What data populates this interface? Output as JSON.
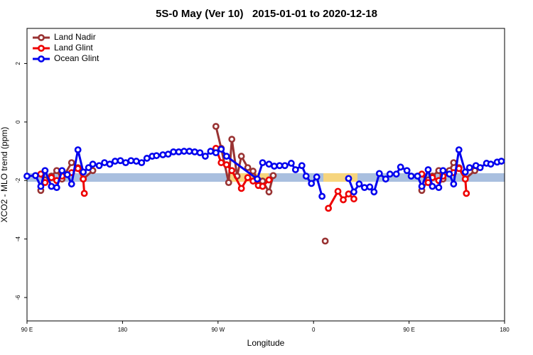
{
  "chart_data": {
    "type": "line",
    "title": "5S-0 May (Ver 10)   2015-01-01 to 2020-12-18",
    "x_label": "Longitude",
    "y_label": "XCO2 - MLO trend (ppm)",
    "xlim": [
      90,
      540
    ],
    "ylim": [
      -6.8,
      3.2
    ],
    "xticks": [
      {
        "value": 90,
        "label": "90 E"
      },
      180,
      {
        "value": 270,
        "label": "90 W"
      },
      {
        "value": 360,
        "label": "0"
      },
      {
        "value": 450,
        "label": "90 E"
      },
      {
        "value": 540,
        "label": "180"
      }
    ],
    "yticks": [
      2,
      0,
      -2,
      -4,
      -6
    ],
    "legend": "top-left",
    "series": [
      {
        "name": "Land Nadir",
        "color": "#993333",
        "x": [
          103,
          107,
          113,
          118,
          123,
          132,
          138,
          143,
          152,
          null,
          268,
          273,
          280,
          283,
          288,
          292,
          298,
          303,
          308,
          312,
          318,
          322,
          null,
          371,
          null,
          462,
          468,
          472,
          478,
          482,
          488,
          492,
          497,
          503,
          512
        ],
        "values": [
          -2.34,
          -1.98,
          -1.85,
          -1.66,
          -1.95,
          -1.39,
          -1.56,
          -1.95,
          -1.66,
          null,
          -0.15,
          -0.9,
          -2.07,
          -0.59,
          -1.85,
          -1.17,
          -1.56,
          -1.68,
          -2.0,
          -2.02,
          -2.39,
          -1.83,
          null,
          -4.07,
          null,
          -2.34,
          -1.98,
          -1.85,
          -1.66,
          -1.95,
          -1.66,
          -1.39,
          -1.56,
          -1.95,
          -1.66
        ]
      },
      {
        "name": "Land Glint",
        "color": "#ee0000",
        "x": [
          103,
          107,
          113,
          118,
          123,
          132,
          138,
          143,
          144,
          null,
          268,
          273,
          278,
          283,
          292,
          298,
          303,
          308,
          312,
          318,
          null,
          374,
          383,
          388,
          393,
          398,
          null,
          462,
          468,
          472,
          478,
          482,
          492,
          497,
          503,
          504
        ],
        "values": [
          -1.78,
          -2.07,
          -1.9,
          -2.0,
          -1.85,
          -1.73,
          -1.59,
          -1.95,
          -2.44,
          null,
          -0.9,
          -1.39,
          -1.46,
          -1.66,
          -2.27,
          -1.9,
          -2.02,
          -2.17,
          -2.2,
          -1.98,
          null,
          -2.95,
          -2.37,
          -2.66,
          -2.46,
          -2.63,
          null,
          -1.78,
          -2.07,
          -1.9,
          -2.0,
          -1.85,
          -1.73,
          -1.59,
          -1.95,
          -2.44
        ]
      },
      {
        "name": "Ocean Glint",
        "color": "#0000ee",
        "x": [
          90,
          98,
          103,
          107,
          113,
          118,
          123,
          128,
          132,
          138,
          143,
          148,
          152,
          158,
          163,
          168,
          173,
          178,
          183,
          188,
          193,
          198,
          203,
          208,
          212,
          218,
          223,
          228,
          233,
          238,
          243,
          248,
          253,
          258,
          263,
          268,
          273,
          278,
          307,
          312,
          318,
          323,
          328,
          333,
          339,
          343,
          349,
          353,
          358,
          363,
          368,
          null,
          393,
          398,
          403,
          408,
          413,
          417,
          422,
          428,
          432,
          438,
          442,
          448,
          452,
          458,
          462,
          468,
          472,
          478,
          482,
          488,
          492,
          497,
          503,
          507,
          513,
          517,
          523,
          527,
          533,
          537
        ],
        "values": [
          -1.85,
          -1.83,
          -2.2,
          -1.66,
          -2.2,
          -2.24,
          -1.66,
          -1.8,
          -2.12,
          -0.95,
          -1.71,
          -1.56,
          -1.44,
          -1.49,
          -1.39,
          -1.44,
          -1.34,
          -1.32,
          -1.39,
          -1.32,
          -1.34,
          -1.39,
          -1.24,
          -1.17,
          -1.15,
          -1.12,
          -1.1,
          -1.02,
          -1.02,
          -1.0,
          -1.0,
          -1.02,
          -1.05,
          -1.17,
          -1.0,
          -1.05,
          -0.93,
          -1.17,
          -1.95,
          -1.39,
          -1.44,
          -1.51,
          -1.49,
          -1.49,
          -1.41,
          -1.63,
          -1.49,
          -1.85,
          -2.1,
          -1.88,
          -2.54,
          null,
          -1.93,
          -2.39,
          -2.12,
          -2.24,
          -2.22,
          -2.39,
          -1.76,
          -1.95,
          -1.78,
          -1.78,
          -1.54,
          -1.66,
          -1.85,
          -1.85,
          -2.2,
          -1.63,
          -2.2,
          -2.24,
          -1.66,
          -1.78,
          -2.12,
          -0.95,
          -1.71,
          -1.56,
          -1.49,
          -1.56,
          -1.41,
          -1.44,
          -1.37,
          -1.34
        ]
      }
    ]
  }
}
